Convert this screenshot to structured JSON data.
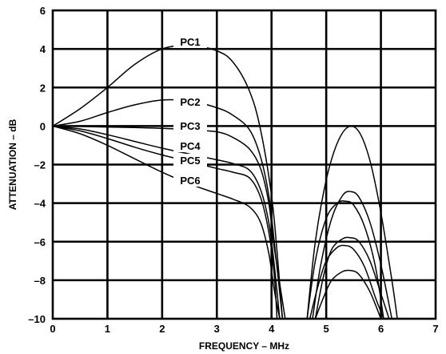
{
  "chart_data": {
    "type": "line",
    "xlabel": "FREQUENCY – MHz",
    "ylabel": "ATTENUATION – dB",
    "xlim": [
      0,
      7
    ],
    "ylim": [
      -10,
      6
    ],
    "xticks": [
      "0",
      "1",
      "2",
      "3",
      "4",
      "5",
      "6",
      "7"
    ],
    "yticks": [
      "6",
      "4",
      "2",
      "0",
      "–2",
      "–4",
      "–6",
      "–8",
      "–10"
    ],
    "grid": true,
    "series": [
      {
        "name": "PC1",
        "x": [
          0,
          0.5,
          1.0,
          1.5,
          2.0,
          2.5,
          3.0,
          3.3,
          3.6,
          3.8,
          4.0,
          4.1,
          4.2
        ],
        "y": [
          0,
          0.9,
          2.0,
          3.2,
          4.0,
          4.2,
          3.9,
          3.3,
          1.8,
          -0.2,
          -3.6,
          -6.5,
          -10
        ],
        "x2": [
          4.65,
          4.8,
          5.0,
          5.2,
          5.4,
          5.6,
          5.8,
          6.0,
          6.2,
          6.3
        ],
        "y2": [
          -10,
          -6.0,
          -2.8,
          -0.9,
          -0.05,
          -0.3,
          -1.8,
          -4.5,
          -8.0,
          -10
        ]
      },
      {
        "name": "PC2",
        "x": [
          0,
          0.5,
          1.0,
          1.5,
          2.0,
          2.5,
          3.0,
          3.3,
          3.6,
          3.8,
          3.95,
          4.05,
          4.2
        ],
        "y": [
          0,
          0.25,
          0.7,
          1.1,
          1.35,
          1.3,
          0.95,
          0.55,
          -0.2,
          -1.6,
          -3.6,
          -6.0,
          -10
        ],
        "x2": [
          4.75,
          4.9,
          5.1,
          5.3,
          5.45,
          5.6,
          5.8,
          6.0,
          6.2
        ],
        "y2": [
          -10,
          -7.2,
          -4.8,
          -3.6,
          -3.4,
          -3.7,
          -5.0,
          -7.2,
          -10
        ]
      },
      {
        "name": "PC3",
        "x": [
          0,
          0.5,
          1.0,
          1.5,
          2.0,
          2.5,
          3.0,
          3.3,
          3.6,
          3.8,
          3.95,
          4.05,
          4.25
        ],
        "y": [
          0,
          -0.02,
          -0.05,
          -0.08,
          -0.12,
          -0.2,
          -0.3,
          -0.6,
          -1.2,
          -2.2,
          -4.0,
          -6.3,
          -10
        ],
        "x2": [
          4.65,
          4.8,
          5.0,
          5.2,
          5.35,
          5.5,
          5.7,
          5.9,
          6.05
        ],
        "y2": [
          -10,
          -7.0,
          -4.8,
          -4.0,
          -3.9,
          -4.1,
          -5.2,
          -7.3,
          -10
        ]
      },
      {
        "name": "PC4",
        "x": [
          0,
          0.5,
          1.0,
          1.5,
          2.0,
          2.5,
          3.0,
          3.3,
          3.6,
          3.8,
          3.95,
          4.05,
          4.15
        ],
        "y": [
          0,
          -0.15,
          -0.45,
          -0.8,
          -1.15,
          -1.45,
          -1.75,
          -1.95,
          -2.3,
          -3.3,
          -5.0,
          -7.2,
          -10
        ],
        "x2": [
          4.8,
          4.95,
          5.1,
          5.3,
          5.45,
          5.6,
          5.8,
          6.0,
          6.15
        ],
        "y2": [
          -10,
          -7.8,
          -6.4,
          -5.85,
          -5.8,
          -6.0,
          -7.0,
          -8.7,
          -10
        ]
      },
      {
        "name": "PC5",
        "x": [
          0,
          0.5,
          1.0,
          1.5,
          2.0,
          2.5,
          3.0,
          3.3,
          3.6,
          3.8,
          3.95,
          4.05,
          4.1
        ],
        "y": [
          0,
          -0.25,
          -0.65,
          -1.1,
          -1.5,
          -1.85,
          -2.2,
          -2.4,
          -2.7,
          -3.7,
          -5.5,
          -7.7,
          -10
        ],
        "x2": [
          4.7,
          4.85,
          5.0,
          5.2,
          5.35,
          5.5,
          5.7,
          5.9,
          6.05
        ],
        "y2": [
          -10,
          -8.3,
          -7.0,
          -6.3,
          -6.2,
          -6.4,
          -7.3,
          -8.9,
          -10
        ]
      },
      {
        "name": "PC6",
        "x": [
          0,
          0.5,
          1.0,
          1.5,
          2.0,
          2.5,
          3.0,
          3.3,
          3.6,
          3.8,
          3.95,
          4.05,
          4.15
        ],
        "y": [
          0,
          -0.4,
          -1.0,
          -1.7,
          -2.4,
          -3.0,
          -3.5,
          -3.8,
          -4.2,
          -5.0,
          -6.6,
          -8.5,
          -10
        ],
        "x2": [
          4.8,
          4.95,
          5.1,
          5.3,
          5.45,
          5.6,
          5.8,
          6.0
        ],
        "y2": [
          -10,
          -8.9,
          -8.0,
          -7.55,
          -7.5,
          -7.7,
          -8.6,
          -10
        ]
      }
    ]
  }
}
